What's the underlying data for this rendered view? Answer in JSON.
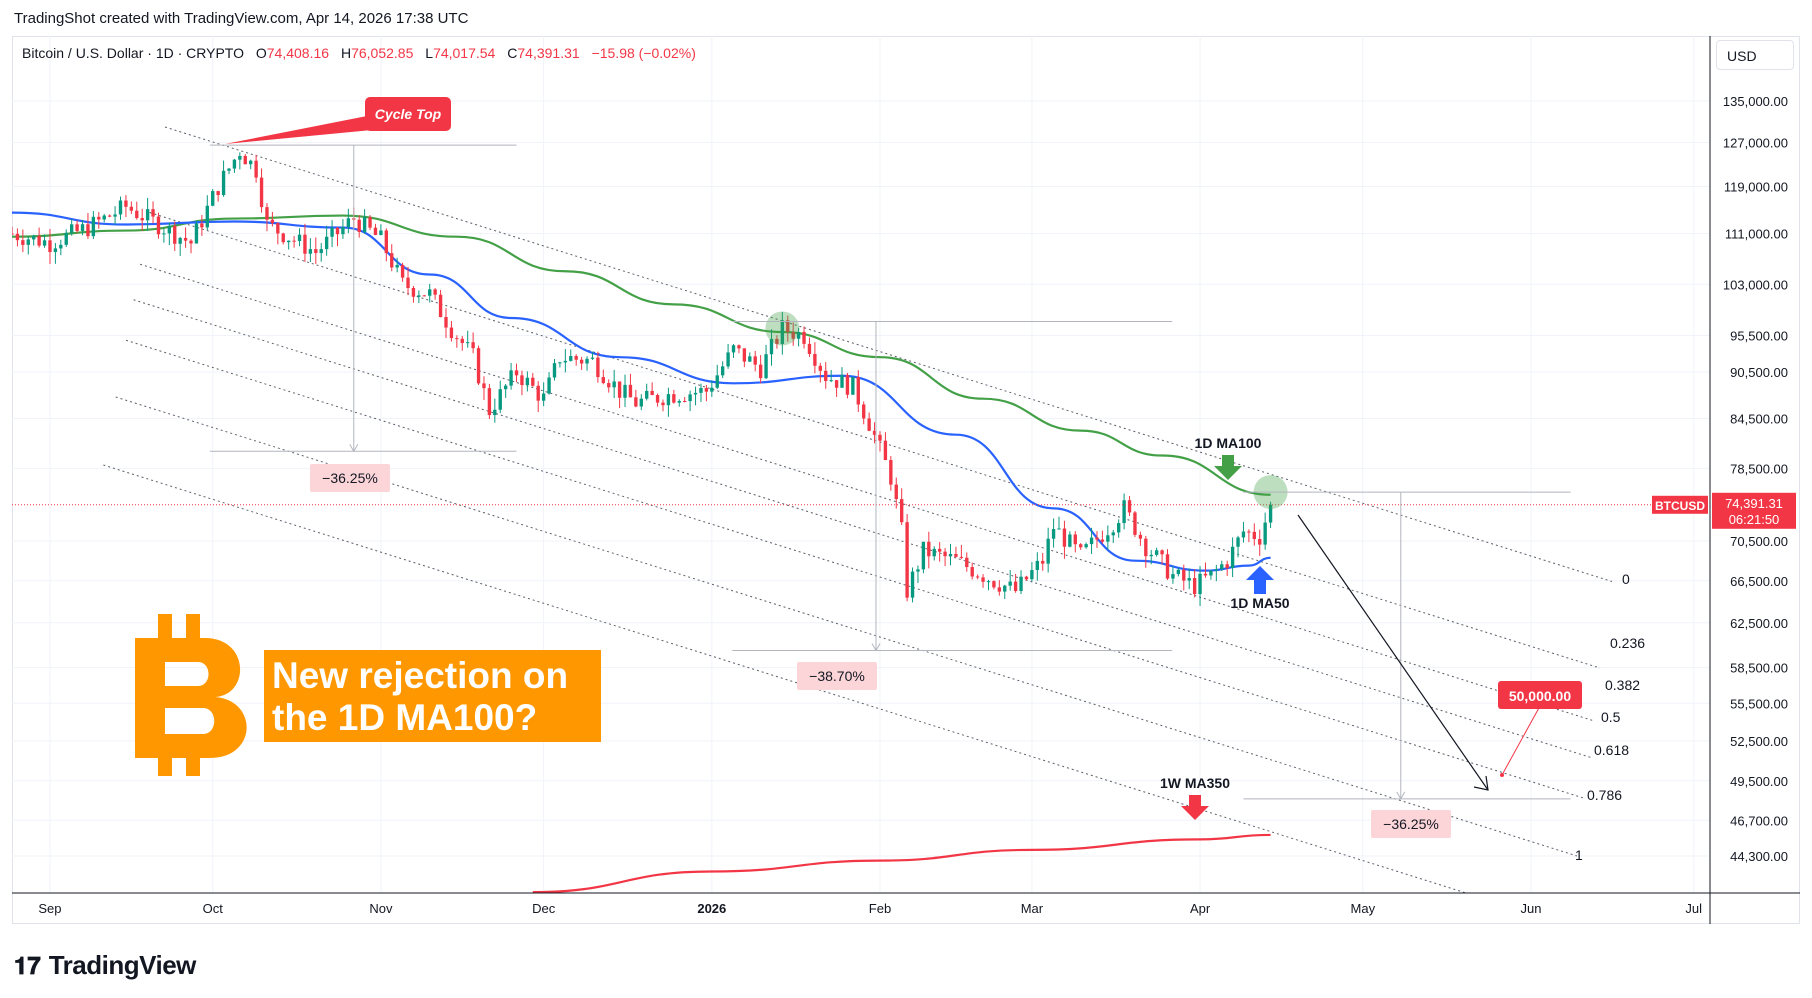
{
  "header": {
    "text": "TradingShot created with TradingView.com, Apr 14, 2026 17:38 UTC"
  },
  "legend": {
    "symbol": "Bitcoin / U.S. Dollar · 1D · CRYPTO",
    "o_label": "O",
    "o_value": "74,408.16",
    "h_label": "H",
    "h_value": "76,052.85",
    "l_label": "L",
    "l_value": "74,017.54",
    "c_label": "C",
    "c_value": "74,391.31",
    "change": "−15.98 (−0.02%)"
  },
  "currency": "USD",
  "footer": {
    "logo_mark": "𝟏𝟕",
    "brand": "TradingView"
  },
  "headline": {
    "line1": "New rejection on",
    "line2": "the 1D MA100?"
  },
  "price_label": {
    "ticker": "BTCUSD",
    "price": "74,391.31",
    "countdown": "06:21:50"
  },
  "colors": {
    "up": "#089981",
    "down": "#f23645",
    "ma50": "#2962ff",
    "ma100": "#43a047",
    "ma350": "#f23645",
    "headline_bg": "#ff9800",
    "bitcoin": "#ff9800"
  },
  "chart_data": {
    "type": "candlestick",
    "title": "",
    "log_scale": true,
    "y_ticks": [
      135000,
      127000,
      119000,
      111000,
      103000,
      95500,
      90500,
      84500,
      78500,
      70500,
      66500,
      62500,
      58500,
      55500,
      52500,
      49500,
      46700,
      44300
    ],
    "y_tick_labels": [
      "135,000.00",
      "127,000.00",
      "119,000.00",
      "111,000.00",
      "103,000.00",
      "95,500.00",
      "90,500.00",
      "84,500.00",
      "78,500.00",
      "70,500.00",
      "66,500.00",
      "62,500.00",
      "58,500.00",
      "55,500.00",
      "52,500.00",
      "49,500.00",
      "46,700.00",
      "44,300.00"
    ],
    "x_range": [
      "2025-08-25",
      "2026-07-04"
    ],
    "x_ticks": [
      {
        "date": "2025-09-01",
        "label": "Sep"
      },
      {
        "date": "2025-10-01",
        "label": "Oct"
      },
      {
        "date": "2025-11-01",
        "label": "Nov"
      },
      {
        "date": "2025-12-01",
        "label": "Dec"
      },
      {
        "date": "2026-01-01",
        "label": "2026"
      },
      {
        "date": "2026-02-01",
        "label": "Feb"
      },
      {
        "date": "2026-03-01",
        "label": "Mar"
      },
      {
        "date": "2026-04-01",
        "label": "Apr"
      },
      {
        "date": "2026-05-01",
        "label": "May"
      },
      {
        "date": "2026-06-01",
        "label": "Jun"
      },
      {
        "date": "2026-07-01",
        "label": "Jul"
      }
    ],
    "price_path": [
      [
        "2025-08-25",
        111000
      ],
      [
        "2025-09-01",
        109500
      ],
      [
        "2025-09-08",
        112000
      ],
      [
        "2025-09-15",
        115500
      ],
      [
        "2025-09-22",
        112000
      ],
      [
        "2025-09-27",
        109500
      ],
      [
        "2025-10-02",
        119000
      ],
      [
        "2025-10-06",
        125500
      ],
      [
        "2025-10-09",
        122000
      ],
      [
        "2025-10-11",
        112500
      ],
      [
        "2025-10-15",
        110500
      ],
      [
        "2025-10-20",
        108000
      ],
      [
        "2025-10-27",
        113500
      ],
      [
        "2025-11-01",
        110000
      ],
      [
        "2025-11-05",
        103000
      ],
      [
        "2025-11-10",
        101500
      ],
      [
        "2025-11-14",
        96500
      ],
      [
        "2025-11-18",
        92500
      ],
      [
        "2025-11-21",
        85500
      ],
      [
        "2025-11-26",
        90500
      ],
      [
        "2025-12-01",
        87000
      ],
      [
        "2025-12-04",
        92500
      ],
      [
        "2025-12-10",
        92000
      ],
      [
        "2025-12-15",
        88000
      ],
      [
        "2025-12-18",
        86500
      ],
      [
        "2025-12-24",
        87500
      ],
      [
        "2025-12-31",
        88000
      ],
      [
        "2026-01-05",
        93500
      ],
      [
        "2026-01-10",
        91000
      ],
      [
        "2026-01-14",
        96500
      ],
      [
        "2026-01-18",
        95500
      ],
      [
        "2026-01-22",
        90000
      ],
      [
        "2026-01-27",
        88500
      ],
      [
        "2026-01-30",
        84000
      ],
      [
        "2026-02-03",
        77500
      ],
      [
        "2026-02-05",
        71500
      ],
      [
        "2026-02-06",
        65500
      ],
      [
        "2026-02-09",
        69500
      ],
      [
        "2026-02-15",
        68500
      ],
      [
        "2026-02-22",
        66500
      ],
      [
        "2026-02-26",
        65500
      ],
      [
        "2026-03-03",
        68500
      ],
      [
        "2026-03-05",
        72000
      ],
      [
        "2026-03-10",
        69000
      ],
      [
        "2026-03-16",
        72500
      ],
      [
        "2026-03-18",
        74000
      ],
      [
        "2026-03-22",
        70000
      ],
      [
        "2026-03-27",
        67000
      ],
      [
        "2026-03-31",
        66000
      ],
      [
        "2026-04-03",
        67000
      ],
      [
        "2026-04-06",
        68500
      ],
      [
        "2026-04-09",
        71500
      ],
      [
        "2026-04-12",
        71000
      ],
      [
        "2026-04-14",
        74391
      ]
    ],
    "series": [
      {
        "name": "1D MA100",
        "color": "#43a047",
        "points": [
          [
            "2025-08-25",
            110500
          ],
          [
            "2025-09-15",
            111500
          ],
          [
            "2025-10-05",
            113500
          ],
          [
            "2025-10-25",
            114000
          ],
          [
            "2025-11-15",
            110500
          ],
          [
            "2025-12-05",
            105000
          ],
          [
            "2025-12-25",
            100000
          ],
          [
            "2026-01-14",
            96000
          ],
          [
            "2026-02-01",
            92500
          ],
          [
            "2026-02-20",
            87000
          ],
          [
            "2026-03-10",
            83000
          ],
          [
            "2026-03-25",
            80000
          ],
          [
            "2026-04-14",
            75500
          ]
        ]
      },
      {
        "name": "1D MA50",
        "color": "#2962ff",
        "points": [
          [
            "2025-08-25",
            114500
          ],
          [
            "2025-09-15",
            112500
          ],
          [
            "2025-10-05",
            113000
          ],
          [
            "2025-10-25",
            112000
          ],
          [
            "2025-11-10",
            104500
          ],
          [
            "2025-11-25",
            98000
          ],
          [
            "2025-12-15",
            92500
          ],
          [
            "2026-01-05",
            89000
          ],
          [
            "2026-01-25",
            90000
          ],
          [
            "2026-02-15",
            82500
          ],
          [
            "2026-03-05",
            74000
          ],
          [
            "2026-03-20",
            68500
          ],
          [
            "2026-04-02",
            67500
          ],
          [
            "2026-04-10",
            68000
          ],
          [
            "2026-04-14",
            68800
          ]
        ]
      },
      {
        "name": "1W MA350",
        "color": "#f23645",
        "points": [
          [
            "2025-11-29",
            42000
          ],
          [
            "2026-01-01",
            43300
          ],
          [
            "2026-02-01",
            44000
          ],
          [
            "2026-03-01",
            44700
          ],
          [
            "2026-04-01",
            45400
          ],
          [
            "2026-04-14",
            45700
          ]
        ]
      }
    ],
    "fib_levels": [
      {
        "label": "0"
      },
      {
        "label": "0.236"
      },
      {
        "label": "0.382"
      },
      {
        "label": "0.5"
      },
      {
        "label": "0.618"
      },
      {
        "label": "0.786"
      },
      {
        "label": "1"
      }
    ],
    "annotations": {
      "cycle_top": "Cycle Top",
      "ma100_label": "1D MA100",
      "ma50_label": "1D MA50",
      "ma350_label": "1W MA350",
      "drop1": "−36.25%",
      "drop2": "−38.70%",
      "drop3": "−36.25%",
      "target": "50,000.00"
    }
  }
}
